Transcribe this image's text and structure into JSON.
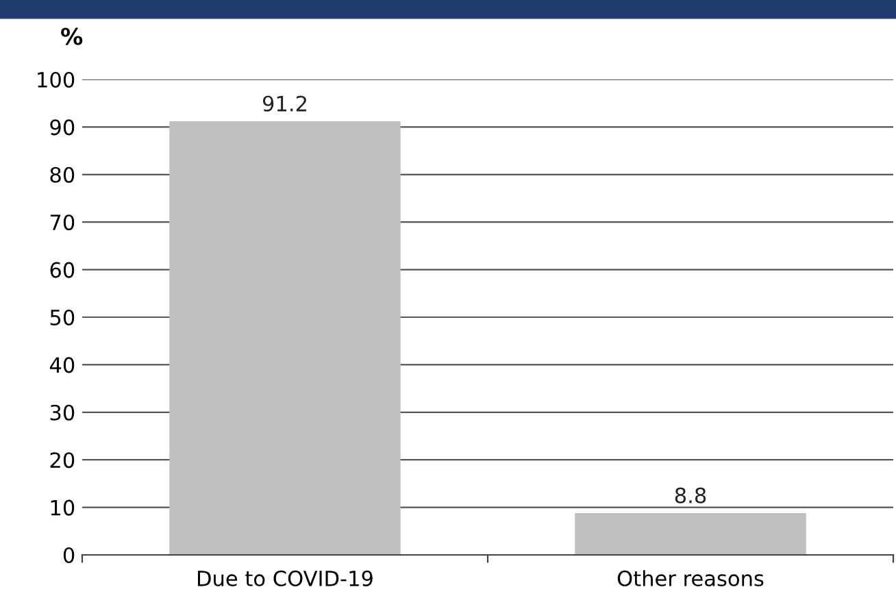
{
  "chart_data": {
    "type": "bar",
    "ylabel": "%",
    "categories": [
      "Due to COVID-19",
      "Other reasons"
    ],
    "values": [
      91.2,
      8.8
    ],
    "color": "#bfbfbf",
    "data_labels": true,
    "ylim": [
      0,
      100
    ],
    "yticks": [
      0,
      10,
      20,
      30,
      40,
      50,
      60,
      70,
      80,
      90,
      100
    ],
    "grid": "y"
  }
}
